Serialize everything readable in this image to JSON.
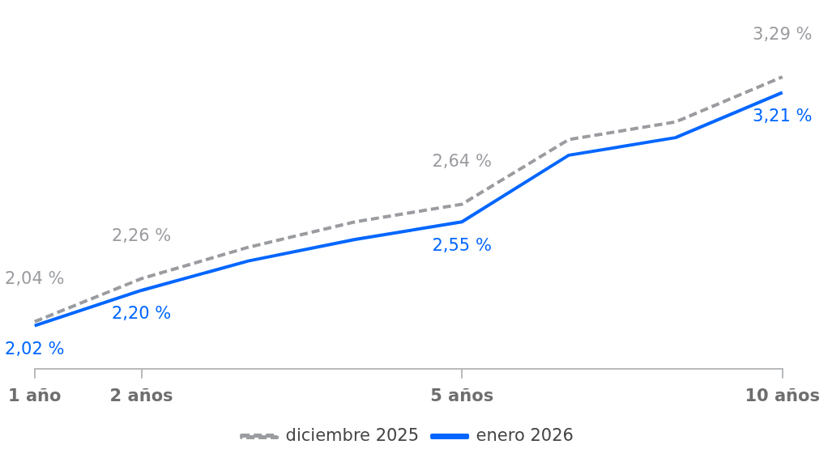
{
  "chart_data": {
    "type": "line",
    "categories": [
      "1 año",
      "2 años",
      null,
      null,
      "5 años",
      null,
      null,
      "10 años"
    ],
    "series": [
      {
        "name": "diciembre 2025",
        "color": "#9a9ca0",
        "line_style": "dashed",
        "values": [
          2.04,
          2.26,
          2.42,
          2.55,
          2.64,
          2.97,
          3.06,
          3.29
        ],
        "value_labels": [
          "2,04 %",
          "2,26 %",
          null,
          null,
          "2,64 %",
          null,
          null,
          "3,29 %"
        ]
      },
      {
        "name": "enero 2026",
        "color": "#0066ff",
        "line_style": "solid",
        "values": [
          2.02,
          2.2,
          2.35,
          2.46,
          2.55,
          2.89,
          2.98,
          3.21
        ],
        "value_labels": [
          "2,02 %",
          "2,20 %",
          null,
          null,
          "2,55 %",
          null,
          null,
          "3,21 %"
        ]
      }
    ],
    "tick_labels": "x",
    "grid": false,
    "legend": "bottom",
    "marker": "none"
  }
}
